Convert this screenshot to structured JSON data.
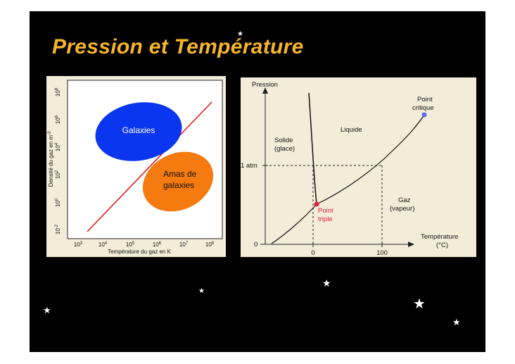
{
  "slide": {
    "title": "Pression et Température",
    "background": "#000000",
    "title_color": "#f7b52a"
  },
  "left_chart": {
    "ylabel": "Densité du gaz en m",
    "ylabel_sup": "-3",
    "xlabel": "Température du gaz en K",
    "yticks": [
      {
        "base": "10",
        "exp": "-2"
      },
      {
        "base": "10",
        "exp": "0"
      },
      {
        "base": "10",
        "exp": "2"
      },
      {
        "base": "10",
        "exp": "4"
      },
      {
        "base": "10",
        "exp": "6"
      },
      {
        "base": "10",
        "exp": "8"
      }
    ],
    "xticks": [
      {
        "base": "10",
        "exp": "3"
      },
      {
        "base": "10",
        "exp": "4"
      },
      {
        "base": "10",
        "exp": "5"
      },
      {
        "base": "10",
        "exp": "6"
      },
      {
        "base": "10",
        "exp": "7"
      },
      {
        "base": "10",
        "exp": "8"
      }
    ],
    "galaxies_label": "Galaxies",
    "amas_line1": "Amas de",
    "amas_line2": "galaxies",
    "galaxies_color": "#0b36f0",
    "amas_color": "#f57a10",
    "line_color": "#e01a1a"
  },
  "right_chart": {
    "ylabel": "Pression",
    "xlabel_line1": "Température",
    "xlabel_line2": "(°C)",
    "y_1atm": "1 atm",
    "y_zero": "0",
    "x_zero": "0",
    "x_hundred": "100",
    "solide_line1": "Solide",
    "solide_line2": "(glace)",
    "liquide": "Liquide",
    "gaz_line1": "Gaz",
    "gaz_line2": "(vapeur)",
    "critical_line1": "Point",
    "critical_line2": "critique",
    "triple_line1": "Point",
    "triple_line2": "triple",
    "triple_color": "#e0203a",
    "critical_color": "#5a6cf0"
  }
}
